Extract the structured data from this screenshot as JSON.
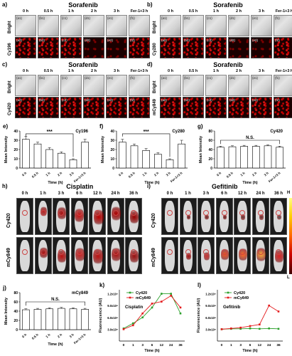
{
  "panels": {
    "a": {
      "letter": "a)",
      "title": "Sorafenib",
      "probe": "Cy196"
    },
    "b": {
      "letter": "b)",
      "title": "Sorafenib",
      "probe": "Cy280"
    },
    "c": {
      "letter": "c)",
      "title": "Sorafenib",
      "probe": "Cy420"
    },
    "d": {
      "letter": "d)",
      "title": "Sorafenib",
      "probe": "mCy849"
    }
  },
  "time_labels": [
    "0 h",
    "0.5 h",
    "1 h",
    "2 h",
    "3 h",
    "Fer-1+3 h"
  ],
  "bright_label": "Bright",
  "subs_top": [
    "(a1)",
    "(b1)",
    "(c1)",
    "(d1)",
    "(e1)",
    "(f1)"
  ],
  "subs_bot": [
    "(a2)",
    "(b2)",
    "(c2)",
    "(d2)",
    "(e2)",
    "(f2)"
  ],
  "bar_charts": {
    "e": {
      "letter": "e)",
      "series": "Cy196",
      "sig": "***"
    },
    "f": {
      "letter": "f)",
      "series": "Cy280",
      "sig": "***"
    },
    "g": {
      "letter": "g)",
      "series": "Cy420",
      "sig": "N.S."
    },
    "j": {
      "letter": "j)",
      "series": "mCy849",
      "sig": "N.S."
    }
  },
  "bar_axis": {
    "ylabel": "Mean Intensity",
    "xlabel": "Time (h)"
  },
  "imaging": {
    "h": {
      "letter": "h)",
      "title": "Cisplatin"
    },
    "i": {
      "letter": "i)",
      "title": "Gefitinib"
    },
    "times": [
      "0 h",
      "1 h",
      "3 h",
      "6 h",
      "12 h",
      "24 h",
      "36 h"
    ],
    "rows": [
      "Cy420",
      "mCy849"
    ],
    "colorbar_high": "H",
    "colorbar_low": "L"
  },
  "line_charts": {
    "k": {
      "letter": "k)",
      "title": "Cisplatin"
    },
    "l": {
      "letter": "l)",
      "title": "Gefitinib"
    },
    "ylabel": "Fluorescence (AU)",
    "xlabel": "Time (h)",
    "legend": [
      "Cy420",
      "mCy849"
    ]
  },
  "chart_data": [
    {
      "id": "e",
      "type": "bar",
      "categories": [
        "0 h",
        "0.5 h",
        "1 h",
        "2 h",
        "3 h",
        "Fer-1+3 h"
      ],
      "values": [
        31,
        26,
        20,
        16,
        9,
        28
      ],
      "errors": [
        3,
        2,
        2,
        1.5,
        1,
        3
      ],
      "ylabel": "Mean Intensity",
      "xlabel": "Time (h)",
      "ylim": [
        0,
        40
      ],
      "yticks": [
        0,
        10,
        20,
        30,
        40
      ],
      "annotation": "***",
      "legend": "Cy196"
    },
    {
      "id": "f",
      "type": "bar",
      "categories": [
        "0 h",
        "0.5 h",
        "1 h",
        "2 h",
        "3 h",
        "Fer-1+3 h"
      ],
      "values": [
        28,
        24,
        19,
        15,
        9,
        26
      ],
      "errors": [
        3,
        2,
        2,
        1.5,
        1,
        4
      ],
      "ylabel": "Mean Intensity",
      "xlabel": "Time (h)",
      "ylim": [
        0,
        40
      ],
      "yticks": [
        0,
        10,
        20,
        30,
        40
      ],
      "annotation": "***",
      "legend": "Cy280"
    },
    {
      "id": "g",
      "type": "bar",
      "categories": [
        "0 h",
        "0.5 h",
        "1 h",
        "2 h",
        "3 h",
        "Fer-1+3 h"
      ],
      "values": [
        45,
        46,
        47,
        47,
        48,
        45
      ],
      "errors": [
        2,
        2,
        2,
        2,
        2,
        2
      ],
      "ylabel": "Mean Intensity",
      "xlabel": "Time (h)",
      "ylim": [
        0,
        80
      ],
      "yticks": [
        0,
        20,
        40,
        60,
        80
      ],
      "annotation": "N.S.",
      "legend": "Cy420"
    },
    {
      "id": "j",
      "type": "bar",
      "categories": [
        "0 h",
        "0.5 h",
        "1 h",
        "2 h",
        "3 h",
        "Fer-1+3 h"
      ],
      "values": [
        43,
        44,
        45,
        46,
        45,
        44
      ],
      "errors": [
        2,
        2,
        2,
        2,
        2,
        2
      ],
      "ylabel": "Mean Intensity",
      "xlabel": "Time (h)",
      "ylim": [
        0,
        80
      ],
      "yticks": [
        0,
        20,
        40,
        60,
        80
      ],
      "annotation": "N.S.",
      "legend": "mCy849"
    },
    {
      "id": "k",
      "type": "line",
      "x": [
        0,
        1,
        3,
        6,
        12,
        24,
        36
      ],
      "xticks": [
        "0",
        "1",
        "3",
        "6",
        "12",
        "24",
        "36"
      ],
      "series": [
        {
          "name": "Cy420",
          "values": [
            3.2,
            4.5,
            6.0,
            8.5,
            12.0,
            12.0,
            7.0
          ],
          "color": "#2ca02c"
        },
        {
          "name": "mCy849",
          "values": [
            3.0,
            4.0,
            7.0,
            9.5,
            10.0,
            11.5,
            8.5
          ],
          "color": "#e41a1c"
        }
      ],
      "yticks": [
        "3.0x10⁸",
        "6.0x10⁸",
        "9.0x10⁸",
        "1.2x10⁹"
      ],
      "ylim": [
        0,
        13
      ],
      "ylabel": "Fluorescence (AU)",
      "xlabel": "Time (h)",
      "title": "Cisplatin"
    },
    {
      "id": "l",
      "type": "line",
      "x": [
        0,
        1,
        3,
        6,
        12,
        24,
        36
      ],
      "xticks": [
        "0",
        "1",
        "3",
        "6",
        "12",
        "24",
        "36"
      ],
      "series": [
        {
          "name": "Cy420",
          "values": [
            3.0,
            3.1,
            3.1,
            3.2,
            3.1,
            3.2,
            3.1
          ],
          "color": "#2ca02c"
        },
        {
          "name": "mCy849",
          "values": [
            3.0,
            3.2,
            3.4,
            3.8,
            4.2,
            9.0,
            7.5
          ],
          "color": "#e41a1c"
        }
      ],
      "yticks": [
        "3.0x10⁸",
        "6.0x10⁸",
        "9.0x10⁸",
        "1.2x10⁹"
      ],
      "ylim": [
        0,
        13
      ],
      "ylabel": "Fluorescence (AU)",
      "xlabel": "Time (h)",
      "title": "Gefitinib"
    }
  ]
}
